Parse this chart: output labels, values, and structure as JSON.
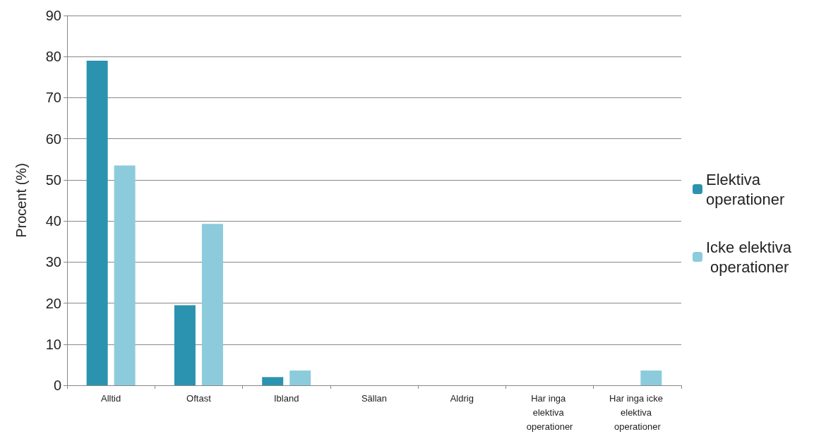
{
  "chart_data": {
    "type": "bar",
    "ylabel": "Procent (%)",
    "categories": [
      "Alltid",
      "Oftast",
      "Ibland",
      "Sällan",
      "Aldrig",
      "Har inga elektiva operationer",
      "Har inga icke elektiva operationer"
    ],
    "series": [
      {
        "name": "Elektiva operationer",
        "color": "#2b93b0",
        "values": [
          79,
          19.5,
          2,
          0,
          0,
          0,
          0
        ]
      },
      {
        "name": "Icke elektiva operationer",
        "color": "#8ccbdc",
        "values": [
          53.5,
          39.3,
          3.6,
          0,
          0,
          0,
          3.6
        ]
      }
    ],
    "ylim": [
      0,
      90
    ],
    "yticks": [
      0,
      10,
      20,
      30,
      40,
      50,
      60,
      70,
      80,
      90
    ],
    "grid": "y",
    "legend": "right"
  }
}
